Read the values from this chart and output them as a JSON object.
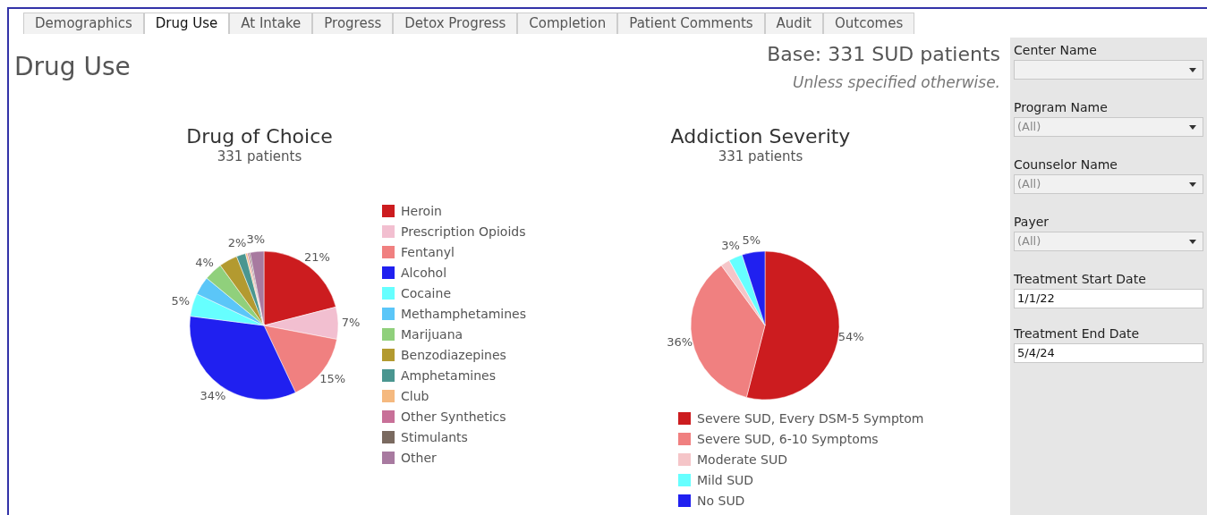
{
  "chart_data": [
    {
      "type": "other",
      "title": "Drug Use",
      "subtitle": "Base: 331 SUD patients",
      "annotations": [
        "Unless specified otherwise."
      ],
      "categories": [
        "Demographics",
        "Drug Use",
        "At Intake",
        "Progress",
        "Detox Progress",
        "Completion",
        "Patient Comments",
        "Audit",
        "Outcomes"
      ]
    },
    {
      "type": "pie",
      "title": "Drug of Choice",
      "subtitle": "331 patients",
      "legend": "right",
      "categories": [
        "Heroin",
        "Prescription Opioids",
        "Fentanyl",
        "Alcohol",
        "Cocaine",
        "Methamphetamines",
        "Marijuana",
        "Benzodiazepines",
        "Amphetamines",
        "Club",
        "Other Synthetics",
        "Stimulants",
        "Other"
      ],
      "values": [
        21,
        7,
        15,
        34,
        5,
        4,
        4,
        4,
        2,
        0.4,
        0.3,
        0.3,
        3
      ],
      "colors": [
        "#cc1c1f",
        "#f2bfd0",
        "#f08080",
        "#2020f0",
        "#66ffff",
        "#5bc6f8",
        "#90d07c",
        "#b39a30",
        "#4a9690",
        "#f5b97f",
        "#c87098",
        "#7a6a60",
        "#a87aa0"
      ],
      "value_labels": [
        "21%",
        "7%",
        "15%",
        "34%",
        "5%",
        null,
        "4%",
        null,
        "2%",
        null,
        null,
        null,
        "3%"
      ]
    },
    {
      "type": "pie",
      "title": "Addiction Severity",
      "subtitle": "331 patients",
      "legend": "bottom",
      "categories": [
        "Severe SUD, Every DSM-5 Symptom",
        "Severe SUD, 6-10 Symptoms",
        "Moderate SUD",
        "Mild SUD",
        "No SUD"
      ],
      "values": [
        54,
        36,
        2,
        3,
        5
      ],
      "colors": [
        "#cc1c1f",
        "#f08080",
        "#f5c5c8",
        "#66ffff",
        "#2020f0"
      ],
      "value_labels": [
        "54%",
        "36%",
        null,
        "3%",
        "5%"
      ]
    },
    {
      "type": "other",
      "categories": [
        "Center Name",
        "Program Name",
        "Counselor Name",
        "Payer",
        "Treatment Start Date",
        "Treatment End Date"
      ],
      "value_labels": [
        null,
        "(All)",
        "(All)",
        "(All)",
        "1/1/22",
        "5/4/24"
      ]
    }
  ]
}
